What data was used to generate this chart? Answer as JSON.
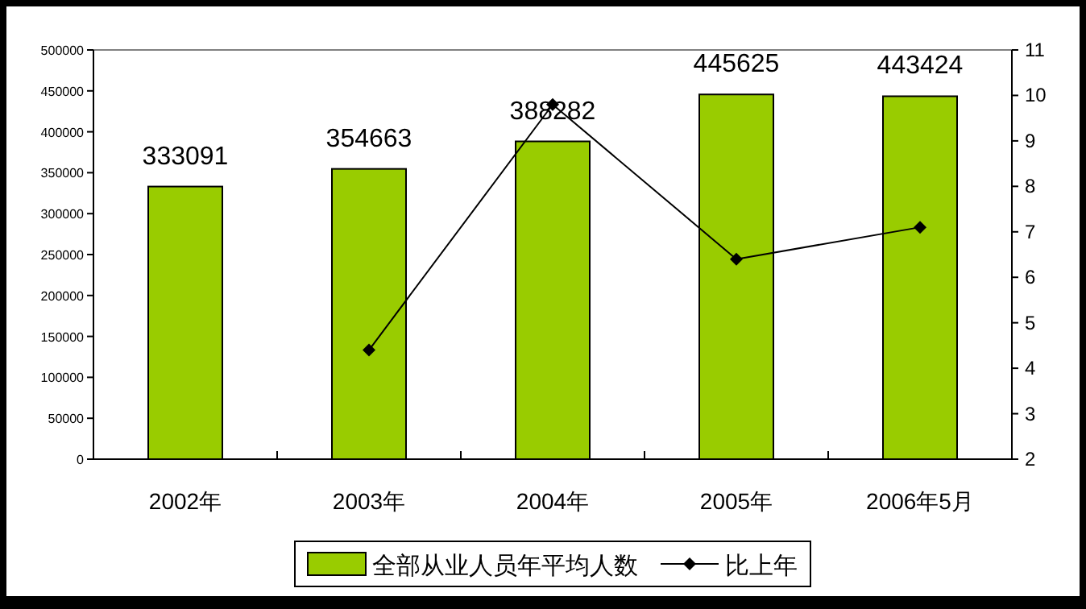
{
  "chart_data": {
    "type": "bar",
    "categories": [
      "2002年",
      "2003年",
      "2004年",
      "2005年",
      "2006年5月"
    ],
    "series": [
      {
        "name": "全部从业人员年平均人数",
        "color": "#99cc00",
        "values": [
          333091,
          354663,
          388282,
          445625,
          443424
        ],
        "value_labels": [
          "333091",
          "354663",
          "388282",
          "445625",
          "443424"
        ]
      },
      {
        "name": "比上年",
        "type": "line",
        "axis": "y2",
        "color": "#000000",
        "values": [
          null,
          4.4,
          9.8,
          6.4,
          7.1
        ]
      }
    ],
    "marker": "diamond",
    "line_style": "solid",
    "ylim": [
      0,
      500000
    ],
    "yticks": [
      0,
      50000,
      100000,
      150000,
      200000,
      250000,
      300000,
      350000,
      400000,
      450000,
      500000
    ],
    "y2lim": [
      2,
      11
    ],
    "y2ticks": [
      2,
      3,
      4,
      5,
      6,
      7,
      8,
      9,
      10,
      11
    ],
    "grid": false,
    "legend": "bottom"
  }
}
